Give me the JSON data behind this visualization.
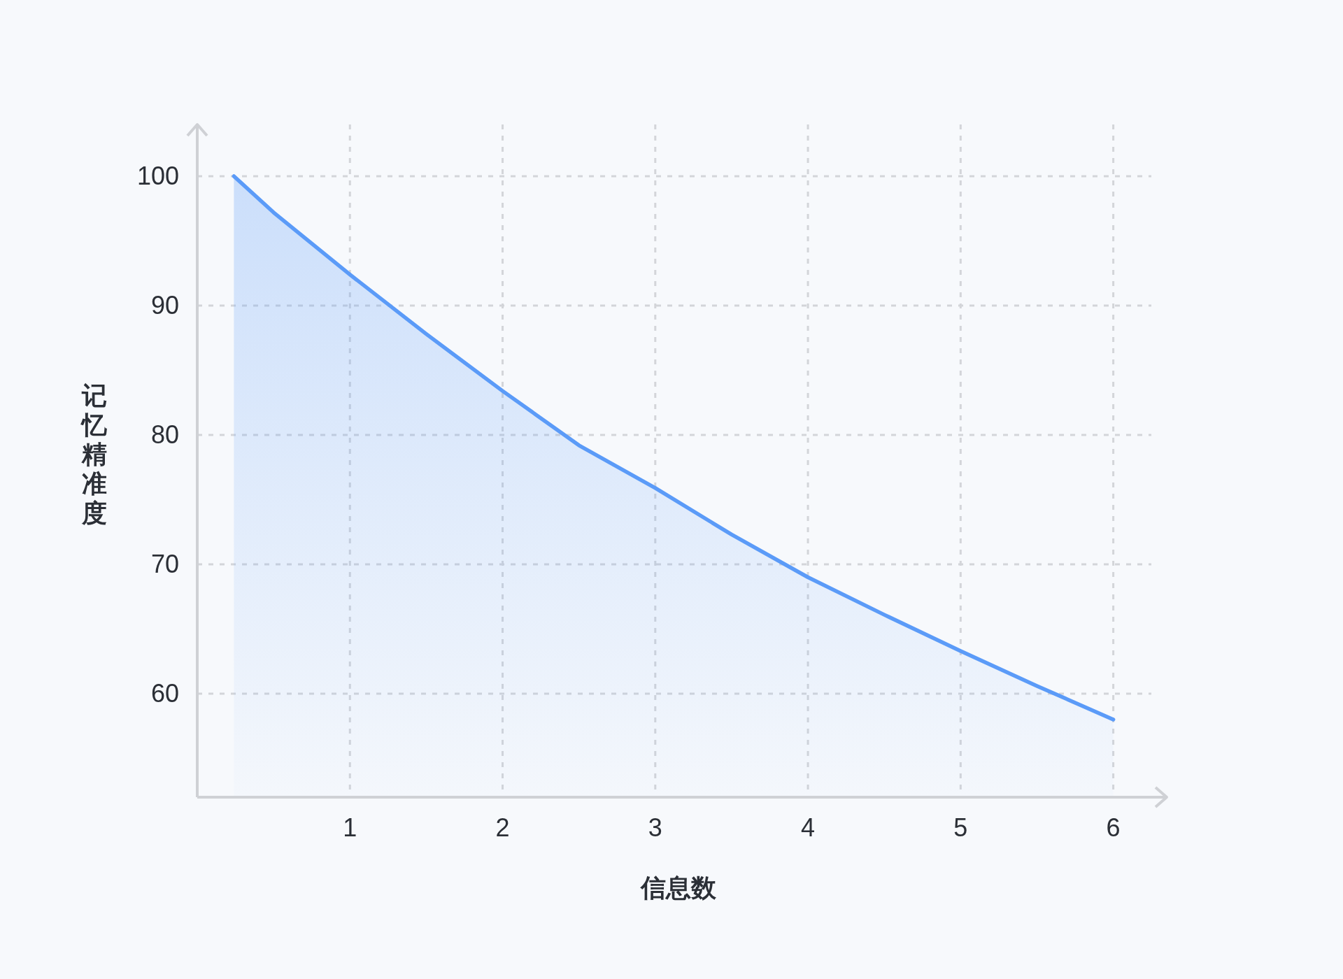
{
  "chart_data": {
    "type": "area",
    "xlabel": "信息数",
    "ylabel": "记忆精准度",
    "xlim": [
      0,
      6.35
    ],
    "ylim": [
      52,
      104
    ],
    "xticks": [
      1,
      2,
      3,
      4,
      5,
      6
    ],
    "yticks": [
      60,
      70,
      80,
      90,
      100
    ],
    "grid": true,
    "line_style": "solid",
    "series": [
      {
        "color": "#5b9bf8",
        "x": [
          0.24,
          0.5,
          1,
          1.5,
          2,
          2.5,
          3,
          3.5,
          4,
          4.5,
          5,
          5.5,
          6
        ],
        "values": [
          100,
          97.2,
          92.4,
          87.8,
          83.4,
          79.2,
          75.9,
          72.3,
          69.0,
          66.1,
          63.3,
          60.6,
          58.0
        ]
      }
    ]
  }
}
